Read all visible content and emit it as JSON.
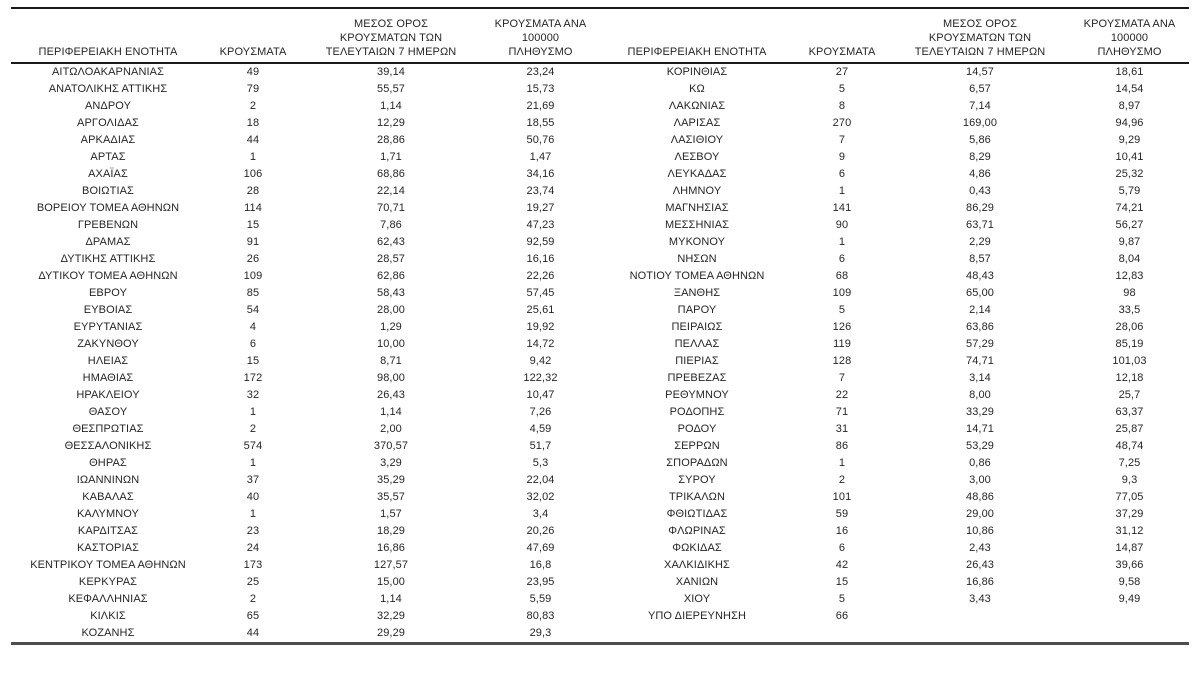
{
  "headers": {
    "region": "ΠΕΡΙΦΕΡΕΙΑΚΗ ΕΝΟΤΗΤΑ",
    "cases": "ΚΡΟΥΣΜΑΤΑ",
    "avg7": "ΜΕΣΟΣ ΟΡΟΣ\nΚΡΟΥΣΜΑΤΩΝ ΤΩΝ\nΤΕΛΕΥΤΑΙΩΝ 7 ΗΜΕΡΩΝ",
    "per100k": "ΚΡΟΥΣΜΑΤΑ ΑΝΑ 100000\nΠΛΗΘΥΣΜΟ"
  },
  "colors": {
    "text": "#262626",
    "rule_top": "#1a1a1a",
    "rule_bottom": "#4d4d4d",
    "background": "#ffffff"
  },
  "left_rows": [
    [
      "ΑΙΤΩΛΟΑΚΑΡΝΑΝΙΑΣ",
      "49",
      "39,14",
      "23,24"
    ],
    [
      "ΑΝΑΤΟΛΙΚΗΣ ΑΤΤΙΚΗΣ",
      "79",
      "55,57",
      "15,73"
    ],
    [
      "ΑΝΔΡΟΥ",
      "2",
      "1,14",
      "21,69"
    ],
    [
      "ΑΡΓΟΛΙΔΑΣ",
      "18",
      "12,29",
      "18,55"
    ],
    [
      "ΑΡΚΑΔΙΑΣ",
      "44",
      "28,86",
      "50,76"
    ],
    [
      "ΑΡΤΑΣ",
      "1",
      "1,71",
      "1,47"
    ],
    [
      "ΑΧΑΪΑΣ",
      "106",
      "68,86",
      "34,16"
    ],
    [
      "ΒΟΙΩΤΙΑΣ",
      "28",
      "22,14",
      "23,74"
    ],
    [
      "ΒΟΡΕΙΟΥ ΤΟΜΕΑ ΑΘΗΝΩΝ",
      "114",
      "70,71",
      "19,27"
    ],
    [
      "ΓΡΕΒΕΝΩΝ",
      "15",
      "7,86",
      "47,23"
    ],
    [
      "ΔΡΑΜΑΣ",
      "91",
      "62,43",
      "92,59"
    ],
    [
      "ΔΥΤΙΚΗΣ ΑΤΤΙΚΗΣ",
      "26",
      "28,57",
      "16,16"
    ],
    [
      "ΔΥΤΙΚΟΥ ΤΟΜΕΑ ΑΘΗΝΩΝ",
      "109",
      "62,86",
      "22,26"
    ],
    [
      "ΕΒΡΟΥ",
      "85",
      "58,43",
      "57,45"
    ],
    [
      "ΕΥΒΟΙΑΣ",
      "54",
      "28,00",
      "25,61"
    ],
    [
      "ΕΥΡΥΤΑΝΙΑΣ",
      "4",
      "1,29",
      "19,92"
    ],
    [
      "ΖΑΚΥΝΘΟΥ",
      "6",
      "10,00",
      "14,72"
    ],
    [
      "ΗΛΕΙΑΣ",
      "15",
      "8,71",
      "9,42"
    ],
    [
      "ΗΜΑΘΙΑΣ",
      "172",
      "98,00",
      "122,32"
    ],
    [
      "ΗΡΑΚΛΕΙΟΥ",
      "32",
      "26,43",
      "10,47"
    ],
    [
      "ΘΑΣΟΥ",
      "1",
      "1,14",
      "7,26"
    ],
    [
      "ΘΕΣΠΡΩΤΙΑΣ",
      "2",
      "2,00",
      "4,59"
    ],
    [
      "ΘΕΣΣΑΛΟΝΙΚΗΣ",
      "574",
      "370,57",
      "51,7"
    ],
    [
      "ΘΗΡΑΣ",
      "1",
      "3,29",
      "5,3"
    ],
    [
      "ΙΩΑΝΝΙΝΩΝ",
      "37",
      "35,29",
      "22,04"
    ],
    [
      "ΚΑΒΑΛΑΣ",
      "40",
      "35,57",
      "32,02"
    ],
    [
      "ΚΑΛΥΜΝΟΥ",
      "1",
      "1,57",
      "3,4"
    ],
    [
      "ΚΑΡΔΙΤΣΑΣ",
      "23",
      "18,29",
      "20,26"
    ],
    [
      "ΚΑΣΤΟΡΙΑΣ",
      "24",
      "16,86",
      "47,69"
    ],
    [
      "ΚΕΝΤΡΙΚΟΥ ΤΟΜΕΑ ΑΘΗΝΩΝ",
      "173",
      "127,57",
      "16,8"
    ],
    [
      "ΚΕΡΚΥΡΑΣ",
      "25",
      "15,00",
      "23,95"
    ],
    [
      "ΚΕΦΑΛΛΗΝΙΑΣ",
      "2",
      "1,14",
      "5,59"
    ],
    [
      "ΚΙΛΚΙΣ",
      "65",
      "32,29",
      "80,83"
    ],
    [
      "ΚΟΖΑΝΗΣ",
      "44",
      "29,29",
      "29,3"
    ]
  ],
  "right_rows": [
    [
      "ΚΟΡΙΝΘΙΑΣ",
      "27",
      "14,57",
      "18,61"
    ],
    [
      "ΚΩ",
      "5",
      "6,57",
      "14,54"
    ],
    [
      "ΛΑΚΩΝΙΑΣ",
      "8",
      "7,14",
      "8,97"
    ],
    [
      "ΛΑΡΙΣΑΣ",
      "270",
      "169,00",
      "94,96"
    ],
    [
      "ΛΑΣΙΘΙΟΥ",
      "7",
      "5,86",
      "9,29"
    ],
    [
      "ΛΕΣΒΟΥ",
      "9",
      "8,29",
      "10,41"
    ],
    [
      "ΛΕΥΚΑΔΑΣ",
      "6",
      "4,86",
      "25,32"
    ],
    [
      "ΛΗΜΝΟΥ",
      "1",
      "0,43",
      "5,79"
    ],
    [
      "ΜΑΓΝΗΣΙΑΣ",
      "141",
      "86,29",
      "74,21"
    ],
    [
      "ΜΕΣΣΗΝΙΑΣ",
      "90",
      "63,71",
      "56,27"
    ],
    [
      "ΜΥΚΟΝΟΥ",
      "1",
      "2,29",
      "9,87"
    ],
    [
      "ΝΗΣΩΝ",
      "6",
      "8,57",
      "8,04"
    ],
    [
      "ΝΟΤΙΟΥ ΤΟΜΕΑ ΑΘΗΝΩΝ",
      "68",
      "48,43",
      "12,83"
    ],
    [
      "ΞΑΝΘΗΣ",
      "109",
      "65,00",
      "98"
    ],
    [
      "ΠΑΡΟΥ",
      "5",
      "2,14",
      "33,5"
    ],
    [
      "ΠΕΙΡΑΙΩΣ",
      "126",
      "63,86",
      "28,06"
    ],
    [
      "ΠΕΛΛΑΣ",
      "119",
      "57,29",
      "85,19"
    ],
    [
      "ΠΙΕΡΙΑΣ",
      "128",
      "74,71",
      "101,03"
    ],
    [
      "ΠΡΕΒΕΖΑΣ",
      "7",
      "3,14",
      "12,18"
    ],
    [
      "ΡΕΘΥΜΝΟΥ",
      "22",
      "8,00",
      "25,7"
    ],
    [
      "ΡΟΔΟΠΗΣ",
      "71",
      "33,29",
      "63,37"
    ],
    [
      "ΡΟΔΟΥ",
      "31",
      "14,71",
      "25,87"
    ],
    [
      "ΣΕΡΡΩΝ",
      "86",
      "53,29",
      "48,74"
    ],
    [
      "ΣΠΟΡΑΔΩΝ",
      "1",
      "0,86",
      "7,25"
    ],
    [
      "ΣΥΡΟΥ",
      "2",
      "3,00",
      "9,3"
    ],
    [
      "ΤΡΙΚΑΛΩΝ",
      "101",
      "48,86",
      "77,05"
    ],
    [
      "ΦΘΙΩΤΙΔΑΣ",
      "59",
      "29,00",
      "37,29"
    ],
    [
      "ΦΛΩΡΙΝΑΣ",
      "16",
      "10,86",
      "31,12"
    ],
    [
      "ΦΩΚΙΔΑΣ",
      "6",
      "2,43",
      "14,87"
    ],
    [
      "ΧΑΛΚΙΔΙΚΗΣ",
      "42",
      "26,43",
      "39,66"
    ],
    [
      "ΧΑΝΙΩΝ",
      "15",
      "16,86",
      "9,58"
    ],
    [
      "ΧΙΟΥ",
      "5",
      "3,43",
      "9,49"
    ],
    [
      "ΥΠΟ ΔΙΕΡΕΥΝΗΣΗ",
      "66",
      "",
      ""
    ]
  ]
}
